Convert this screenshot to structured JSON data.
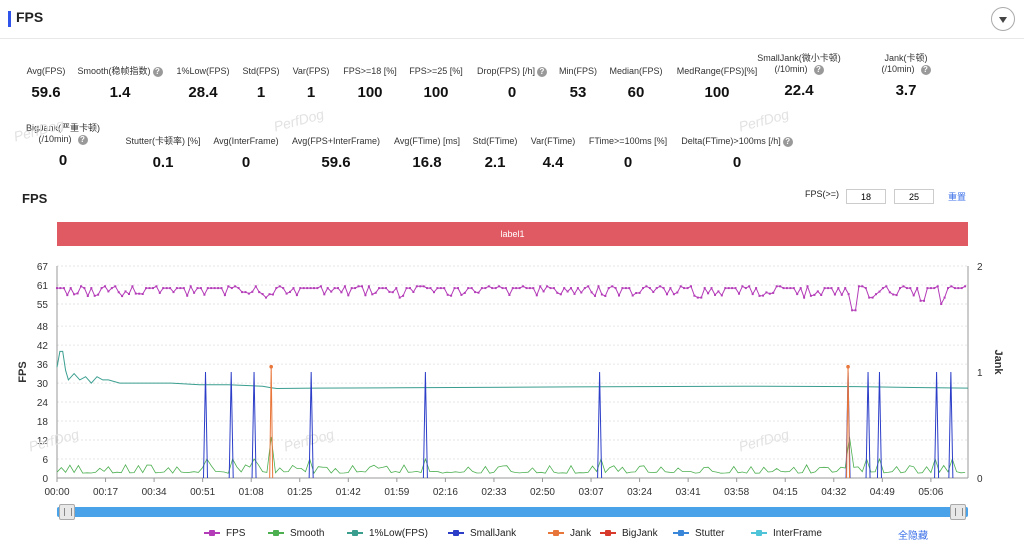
{
  "header": {
    "title": "FPS"
  },
  "metrics_row1": [
    {
      "label": "Avg(FPS)",
      "value": "59.6",
      "help": false
    },
    {
      "label": "Smooth(稳帧指数)",
      "value": "1.4",
      "help": true
    },
    {
      "label": "1%Low(FPS)",
      "value": "28.4",
      "help": false
    },
    {
      "label": "Std(FPS)",
      "value": "1",
      "help": false
    },
    {
      "label": "Var(FPS)",
      "value": "1",
      "help": false
    },
    {
      "label": "FPS>=18 [%]",
      "value": "100",
      "help": false
    },
    {
      "label": "FPS>=25 [%]",
      "value": "100",
      "help": false
    },
    {
      "label": "Drop(FPS) [/h]",
      "value": "0",
      "help": true
    },
    {
      "label": "Min(FPS)",
      "value": "53",
      "help": false
    },
    {
      "label": "Median(FPS)",
      "value": "60",
      "help": false
    },
    {
      "label": "MedRange(FPS)[%]",
      "value": "100",
      "help": false
    },
    {
      "label": "SmallJank(微小卡顿)",
      "label2": "(/10min)",
      "value": "22.4",
      "help": true
    },
    {
      "label": "Jank(卡顿)",
      "label2": "(/10min)",
      "value": "3.7",
      "help": true
    }
  ],
  "metrics_row2": [
    {
      "label": "BigJank(严重卡顿)",
      "label2": "(/10min)",
      "value": "0",
      "help": true
    },
    {
      "label": "Stutter(卡顿率) [%]",
      "value": "0.1",
      "help": false
    },
    {
      "label": "Avg(InterFrame)",
      "value": "0",
      "help": false
    },
    {
      "label": "Avg(FPS+InterFrame)",
      "value": "59.6",
      "help": false
    },
    {
      "label": "Avg(FTime) [ms]",
      "value": "16.8",
      "help": false
    },
    {
      "label": "Std(FTime)",
      "value": "2.1",
      "help": false
    },
    {
      "label": "Var(FTime)",
      "value": "4.4",
      "help": false
    },
    {
      "label": "FTime>=100ms [%]",
      "value": "0",
      "help": false
    },
    {
      "label": "Delta(FTime)>100ms [/h]",
      "value": "0",
      "help": true
    }
  ],
  "chart_panel": {
    "title": "FPS",
    "fps_filter_label": "FPS(>=)",
    "fps_threshold_1": "18",
    "fps_threshold_2": "25",
    "reset_label": "重置",
    "label_bar": "label1",
    "hide_all_label": "全隐藏"
  },
  "watermark": "PerfDog",
  "chart_data": {
    "type": "line",
    "ylabel": "FPS",
    "y2label": "Jank",
    "y_ticks": [
      0,
      6,
      12,
      18,
      24,
      30,
      36,
      42,
      48,
      55,
      61,
      67
    ],
    "ylim": [
      0,
      67
    ],
    "y2_ticks": [
      0,
      1,
      2
    ],
    "y2lim": [
      0,
      2
    ],
    "x_ticks": [
      "00:00",
      "00:17",
      "00:34",
      "00:51",
      "01:08",
      "01:25",
      "01:42",
      "01:59",
      "02:16",
      "02:33",
      "02:50",
      "03:07",
      "03:24",
      "03:41",
      "03:58",
      "04:15",
      "04:32",
      "04:49",
      "05:06"
    ],
    "xlim_seconds": [
      0,
      319
    ],
    "series": [
      {
        "name": "FPS",
        "color": "#b43cb8",
        "axis": "left",
        "baseline": 60,
        "low_dips": [
          [
            73,
            57
          ],
          [
            76,
            58
          ],
          [
            120,
            57
          ],
          [
            191,
            58
          ],
          [
            225,
            57
          ],
          [
            262,
            57
          ],
          [
            272,
            58
          ],
          [
            285,
            57
          ],
          [
            303,
            56
          ],
          [
            311,
            57
          ]
        ],
        "deep_dips": [
          [
            279,
            53
          ],
          [
            310,
            55
          ]
        ]
      },
      {
        "name": "Smooth",
        "color": "#4caf50",
        "axis": "left",
        "baseline": 1.5
      },
      {
        "name": "1%Low(FPS)",
        "color": "#3a9e8f",
        "axis": "left",
        "points": [
          [
            0,
            35
          ],
          [
            1,
            40
          ],
          [
            2,
            40
          ],
          [
            3,
            34
          ],
          [
            4,
            31
          ],
          [
            6,
            33
          ],
          [
            8,
            31
          ],
          [
            10,
            32
          ],
          [
            12,
            30
          ],
          [
            14,
            32
          ],
          [
            16,
            31
          ],
          [
            18,
            31
          ],
          [
            22,
            30
          ],
          [
            28,
            30
          ],
          [
            40,
            30
          ],
          [
            50,
            29.5
          ],
          [
            60,
            29.5
          ],
          [
            72,
            29
          ],
          [
            75,
            28.5
          ],
          [
            77,
            28.3
          ],
          [
            90,
            28.4
          ],
          [
            120,
            28.5
          ],
          [
            180,
            28.8
          ],
          [
            240,
            29
          ],
          [
            280,
            28.9
          ],
          [
            300,
            28.6
          ],
          [
            319,
            28.4
          ]
        ]
      },
      {
        "name": "SmallJank",
        "color": "#2c3ec8",
        "axis": "right",
        "spikes": [
          52,
          61,
          69,
          89,
          129,
          190,
          277,
          284,
          288,
          308,
          313
        ]
      },
      {
        "name": "Jank",
        "color": "#e8763a",
        "axis": "right",
        "spikes": [
          75,
          277
        ]
      },
      {
        "name": "BigJank",
        "color": "#d83a2c",
        "axis": "right",
        "spikes": []
      },
      {
        "name": "Stutter",
        "color": "#3a86d8",
        "axis": "right",
        "spikes": []
      },
      {
        "name": "InterFrame",
        "color": "#4fc4d8",
        "axis": "left",
        "spikes": []
      }
    ]
  }
}
